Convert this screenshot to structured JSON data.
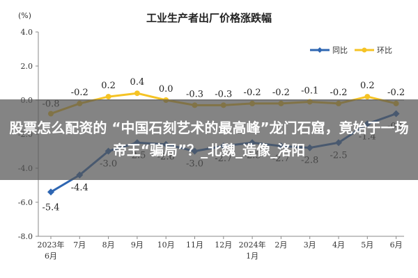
{
  "chart_data": {
    "type": "line",
    "title": "工业生产者出厂价格涨跌幅",
    "unit_label": "(%)",
    "ylim": [
      -8.0,
      4.0
    ],
    "yticks": [
      "4.0",
      "2.0",
      "0.0",
      "-2.0",
      "-4.0",
      "-6.0",
      "-8.0"
    ],
    "ytick_values": [
      4,
      2,
      0,
      -2,
      -4,
      -6,
      -8
    ],
    "categories": [
      "2023年6月",
      "7月",
      "8月",
      "9月",
      "10月",
      "11月",
      "12月",
      "2024年1月",
      "2月",
      "3月",
      "4月",
      "5月",
      "6月"
    ],
    "category_lines": [
      [
        "2023年",
        "6月"
      ],
      [
        "7月"
      ],
      [
        "8月"
      ],
      [
        "9月"
      ],
      [
        "10月"
      ],
      [
        "11月"
      ],
      [
        "12月"
      ],
      [
        "2024年",
        "1月"
      ],
      [
        "2月"
      ],
      [
        "3月"
      ],
      [
        "4月"
      ],
      [
        "5月"
      ],
      [
        "6月"
      ]
    ],
    "legend_position": "top-right",
    "grid": false,
    "series": [
      {
        "name": "同比",
        "color": "#2e66b2",
        "values": [
          -5.4,
          -4.4,
          -3.0,
          -2.5,
          -2.6,
          -3.0,
          -2.7,
          -2.5,
          -2.7,
          -2.8,
          -2.5,
          -1.4,
          -0.8
        ],
        "labels": [
          "-5.4",
          "-4.4",
          "-3.0",
          "-2.5",
          "-2.6",
          "-3.0",
          "-2.7",
          "-2.5",
          "-2.7",
          "-2.8",
          "-2.5",
          "-1.4",
          "-0.8"
        ]
      },
      {
        "name": "环比",
        "color": "#f5c324",
        "values": [
          -0.8,
          -0.2,
          0.2,
          0.4,
          0.0,
          -0.3,
          -0.3,
          -0.2,
          -0.2,
          -0.1,
          -0.2,
          0.2,
          -0.2
        ],
        "labels": [
          "-0.8",
          "-0.2",
          "0.2",
          "0.4",
          "0.0",
          "-0.3",
          "-0.3",
          "-0.2",
          "-0.2",
          "-0.1",
          "-0.2",
          "0.2",
          "-0.2"
        ]
      }
    ]
  },
  "overlay": {
    "headline": "股票怎么配资的 “中国石刻艺术的最高峰”龙门石窟，竟始于一场帝王“骗局”？_北魏_造像_洛阳",
    "background": "#555555"
  }
}
